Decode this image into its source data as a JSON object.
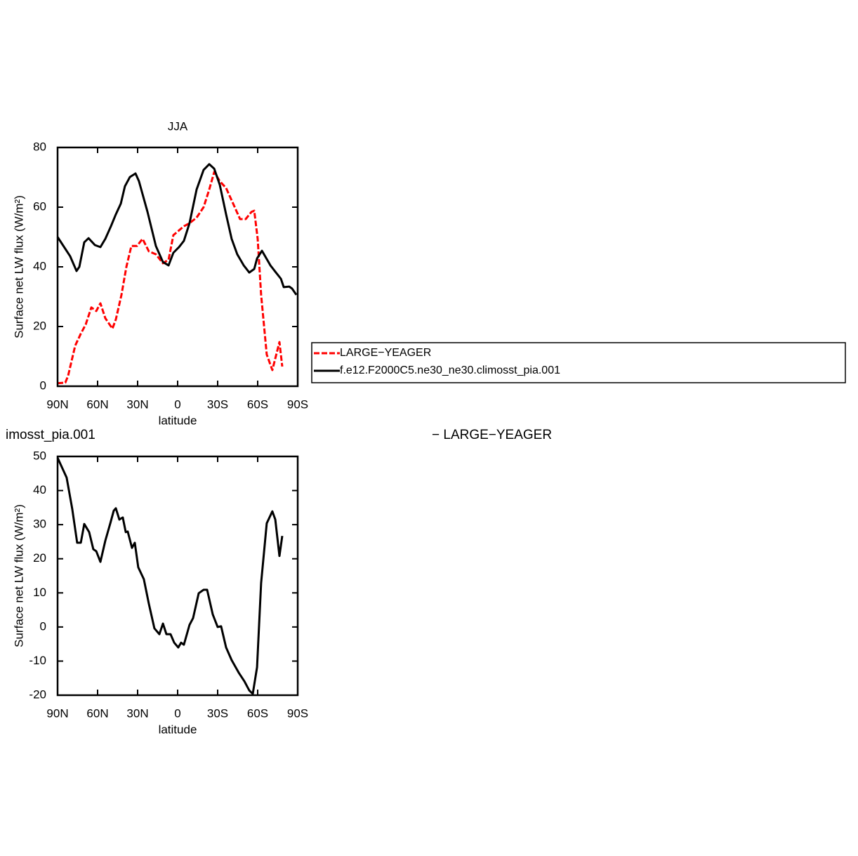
{
  "chart_data": [
    {
      "type": "line",
      "title": "JJA",
      "ylabel": "Surface net LW flux (W/m²)",
      "xlabel": "latitude",
      "xlim": [
        90,
        -90
      ],
      "ylim": [
        0,
        80
      ],
      "xticks": [
        {
          "value": 90,
          "label": "90N"
        },
        {
          "value": 60,
          "label": "60N"
        },
        {
          "value": 30,
          "label": "30N"
        },
        0,
        {
          "value": -30,
          "label": "30S"
        },
        {
          "value": -60,
          "label": "60S"
        },
        {
          "value": -90,
          "label": "90S"
        }
      ],
      "yticks": [
        0,
        20,
        40,
        60,
        80
      ],
      "legend": true,
      "series": [
        {
          "name": "LARGE−YEAGER",
          "color": "#ff0000",
          "linestyle": "dashed",
          "x": [
            90,
            84.2,
            82.1,
            76.8,
            72.6,
            68.9,
            64.7,
            61,
            57.9,
            54.2,
            48.9,
            46.3,
            42.1,
            38.4,
            34.7,
            30.5,
            26.3,
            21.6,
            16.3,
            11,
            6.8,
            3.2,
            -1,
            -4.7,
            -8.9,
            -14.2,
            -19.5,
            -23.7,
            -27.4,
            -31.6,
            -36.3,
            -41.6,
            -46.8,
            -51,
            -55.3,
            -57.4,
            -60,
            -62.6,
            -66.8,
            -71,
            -76.3,
            -78.4
          ],
          "values": [
            1,
            1.2,
            3.5,
            13.6,
            17.6,
            20.7,
            26.4,
            25.2,
            27.8,
            22.8,
            19.3,
            22.4,
            30.6,
            40,
            47,
            47,
            49.4,
            45.2,
            44.2,
            41.2,
            42.4,
            50.6,
            52.2,
            53.6,
            54.6,
            56.5,
            60,
            65.9,
            71.8,
            68.7,
            66.4,
            61.2,
            56,
            56,
            58.4,
            58.8,
            49.4,
            30.6,
            10.6,
            5.4,
            14.8,
            6.6
          ]
        },
        {
          "name": "f.e12.F2000C5.ne30_ne30.climosst_pia.001",
          "color": "#000000",
          "linestyle": "solid",
          "x": [
            90,
            80.5,
            75.8,
            73.7,
            70,
            66.8,
            62,
            57.9,
            54.2,
            50,
            46.3,
            42.6,
            39.5,
            35.8,
            31.6,
            29,
            22.6,
            16.3,
            11,
            6.8,
            3.2,
            -1,
            -4.7,
            -8.9,
            -14.2,
            -19.5,
            -23.7,
            -27.4,
            -31.6,
            -36.3,
            -40.5,
            -44.7,
            -49.5,
            -53.7,
            -57.4,
            -59.5,
            -63.2,
            -69.5,
            -73.7,
            -77.4,
            -79.5,
            -83.7,
            -85.8,
            -89
          ],
          "values": [
            50,
            43.5,
            38.6,
            40,
            48.2,
            49.6,
            47.3,
            46.6,
            49.4,
            53.6,
            57.6,
            61.2,
            67,
            70.1,
            71.3,
            68.7,
            58.4,
            47,
            41.6,
            40.5,
            44.7,
            46.6,
            48.7,
            54.6,
            65.9,
            72.5,
            74.4,
            72.9,
            67.5,
            57.6,
            49.4,
            44.2,
            40.5,
            38.1,
            39.3,
            42.8,
            45.4,
            40.5,
            38.1,
            36,
            33.2,
            33.4,
            32.7,
            30.6
          ]
        }
      ]
    },
    {
      "type": "line",
      "title": "imosst_pia.001",
      "annotation": "− LARGE−YEAGER",
      "ylabel": "Surface net LW flux (W/m²)",
      "xlabel": "latitude",
      "xlim": [
        90,
        -90
      ],
      "ylim": [
        -20,
        50
      ],
      "xticks": [
        {
          "value": 90,
          "label": "90N"
        },
        {
          "value": 60,
          "label": "60N"
        },
        {
          "value": 30,
          "label": "30N"
        },
        0,
        {
          "value": -30,
          "label": "30S"
        },
        {
          "value": -60,
          "label": "60S"
        },
        {
          "value": -90,
          "label": "90S"
        }
      ],
      "yticks": [
        -20,
        -10,
        0,
        10,
        20,
        30,
        40,
        50
      ],
      "legend": false,
      "series": [
        {
          "color": "#000000",
          "linestyle": "solid",
          "x": [
            90,
            83.2,
            79,
            75.3,
            72.6,
            70,
            66.3,
            63.2,
            61,
            57.9,
            54.2,
            50.5,
            47.9,
            46.3,
            43.7,
            41.1,
            38.9,
            37.4,
            34.2,
            32.1,
            29.5,
            25.3,
            21.6,
            17.4,
            13.7,
            11,
            8.4,
            5.3,
            2.6,
            -0.5,
            -2.6,
            -4.7,
            -8.9,
            -11.6,
            -15.8,
            -19.5,
            -22.1,
            -26.3,
            -30,
            -32.6,
            -36.3,
            -40.5,
            -45.8,
            -50,
            -53.7,
            -56.3,
            -59.5,
            -62.6,
            -66.8,
            -71,
            -73.2,
            -76.3,
            -78.4
          ],
          "values": [
            49.6,
            43.8,
            34.6,
            24.7,
            24.7,
            30.2,
            27.8,
            22.8,
            22.2,
            19.1,
            25.3,
            30.4,
            34.1,
            34.8,
            31.5,
            32.1,
            27.8,
            28,
            23.2,
            24.7,
            17.5,
            14,
            6.8,
            -0.4,
            -2.1,
            1,
            -2.1,
            -2.1,
            -4.6,
            -6,
            -4.6,
            -5.2,
            0.6,
            2.6,
            9.9,
            10.9,
            10.9,
            3.7,
            0,
            0.2,
            -6,
            -9.7,
            -13.4,
            -15.9,
            -18.6,
            -19.6,
            -11.8,
            12.9,
            30.4,
            33.9,
            31.5,
            20.8,
            26.7
          ]
        }
      ]
    }
  ]
}
